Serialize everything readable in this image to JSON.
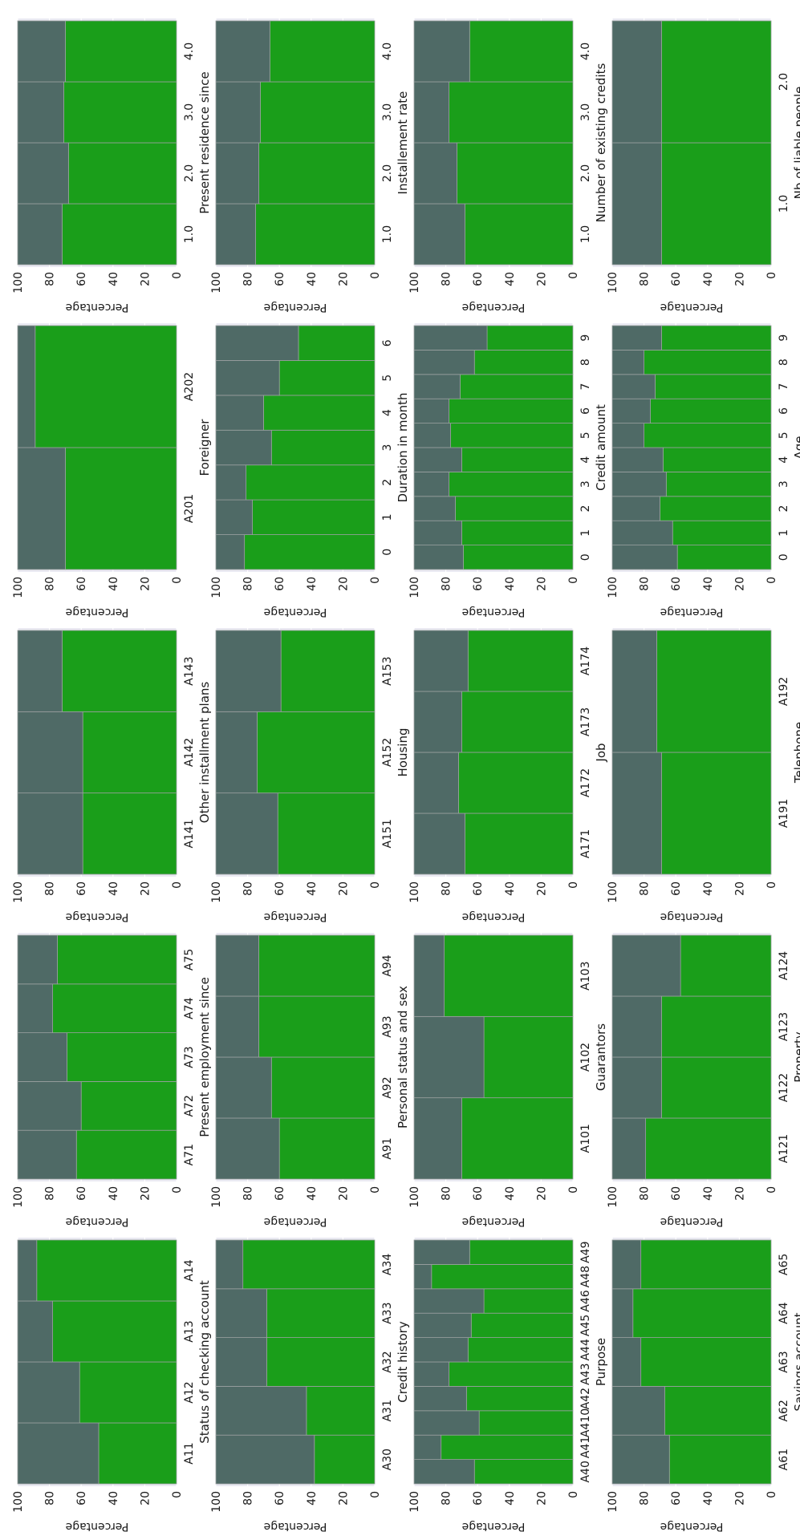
{
  "chart_data": [
    {
      "type": "bar",
      "xlabel": "Status of checking account",
      "ylabel": "Percentage",
      "ylim": [
        0,
        100
      ],
      "categories": [
        "A11",
        "A12",
        "A13",
        "A14"
      ],
      "values": [
        49,
        61,
        78,
        88
      ]
    },
    {
      "type": "bar",
      "xlabel": "Credit history",
      "ylabel": "Percentage",
      "ylim": [
        0,
        100
      ],
      "categories": [
        "A30",
        "A31",
        "A32",
        "A33",
        "A34"
      ],
      "values": [
        38,
        43,
        68,
        68,
        83
      ]
    },
    {
      "type": "bar",
      "xlabel": "Purpose",
      "ylabel": "Percentage",
      "ylim": [
        0,
        100
      ],
      "categories": [
        "A40",
        "A41",
        "A410",
        "A42",
        "A43",
        "A44",
        "A45",
        "A46",
        "A48",
        "A49"
      ],
      "values": [
        62,
        83,
        59,
        67,
        78,
        66,
        64,
        56,
        89,
        65
      ]
    },
    {
      "type": "bar",
      "xlabel": "Savings account",
      "ylabel": "Percentage",
      "ylim": [
        0,
        100
      ],
      "categories": [
        "A61",
        "A62",
        "A63",
        "A64",
        "A65"
      ],
      "values": [
        64,
        67,
        82,
        87,
        82
      ]
    },
    {
      "type": "bar",
      "xlabel": "Present employment since",
      "ylabel": "Percentage",
      "ylim": [
        0,
        100
      ],
      "categories": [
        "A71",
        "A72",
        "A73",
        "A74",
        "A75"
      ],
      "values": [
        63,
        60,
        69,
        78,
        75
      ]
    },
    {
      "type": "bar",
      "xlabel": "Personal status and sex",
      "ylabel": "Percentage",
      "ylim": [
        0,
        100
      ],
      "categories": [
        "A91",
        "A92",
        "A93",
        "A94"
      ],
      "values": [
        60,
        65,
        73,
        73
      ]
    },
    {
      "type": "bar",
      "xlabel": "Guarantors",
      "ylabel": "Percentage",
      "ylim": [
        0,
        100
      ],
      "categories": [
        "A101",
        "A102",
        "A103"
      ],
      "values": [
        70,
        56,
        81
      ]
    },
    {
      "type": "bar",
      "xlabel": "Property",
      "ylabel": "Percentage",
      "ylim": [
        0,
        100
      ],
      "categories": [
        "A121",
        "A122",
        "A123",
        "A124"
      ],
      "values": [
        79,
        69,
        69,
        57
      ]
    },
    {
      "type": "bar",
      "xlabel": "Other installment plans",
      "ylabel": "Percentage",
      "ylim": [
        0,
        100
      ],
      "categories": [
        "A141",
        "A142",
        "A143"
      ],
      "values": [
        59,
        59,
        72
      ]
    },
    {
      "type": "bar",
      "xlabel": "Housing",
      "ylabel": "Percentage",
      "ylim": [
        0,
        100
      ],
      "categories": [
        "A151",
        "A152",
        "A153"
      ],
      "values": [
        61,
        74,
        59
      ]
    },
    {
      "type": "bar",
      "xlabel": "Job",
      "ylabel": "Percentage",
      "ylim": [
        0,
        100
      ],
      "categories": [
        "A171",
        "A172",
        "A173",
        "A174"
      ],
      "values": [
        68,
        72,
        70,
        66
      ]
    },
    {
      "type": "bar",
      "xlabel": "Telephone",
      "ylabel": "Percentage",
      "ylim": [
        0,
        100
      ],
      "categories": [
        "A191",
        "A192"
      ],
      "values": [
        69,
        72
      ]
    },
    {
      "type": "bar",
      "xlabel": "Foreigner",
      "ylabel": "Percentage",
      "ylim": [
        0,
        100
      ],
      "categories": [
        "A201",
        "A202"
      ],
      "values": [
        70,
        89
      ]
    },
    {
      "type": "bar",
      "xlabel": "Duration in month",
      "ylabel": "Percentage",
      "ylim": [
        0,
        100
      ],
      "categories": [
        "0",
        "1",
        "2",
        "3",
        "4",
        "5",
        "6"
      ],
      "values": [
        82,
        77,
        81,
        65,
        70,
        60,
        48
      ]
    },
    {
      "type": "bar",
      "xlabel": "Credit amount",
      "ylabel": "Percentage",
      "ylim": [
        0,
        100
      ],
      "categories": [
        "0",
        "1",
        "2",
        "3",
        "4",
        "5",
        "6",
        "7",
        "8",
        "9"
      ],
      "values": [
        69,
        70,
        74,
        78,
        70,
        77,
        78,
        71,
        62,
        54
      ]
    },
    {
      "type": "bar",
      "xlabel": "Age",
      "ylabel": "Percentage",
      "ylim": [
        0,
        100
      ],
      "categories": [
        "0",
        "1",
        "2",
        "3",
        "4",
        "5",
        "6",
        "7",
        "8",
        "9"
      ],
      "values": [
        59,
        62,
        70,
        66,
        68,
        80,
        76,
        73,
        80,
        69
      ]
    },
    {
      "type": "bar",
      "xlabel": "Present residence since",
      "ylabel": "Percentage",
      "ylim": [
        0,
        100
      ],
      "categories": [
        "1.0",
        "2.0",
        "3.0",
        "4.0"
      ],
      "values": [
        72,
        68,
        71,
        70
      ]
    },
    {
      "type": "bar",
      "xlabel": "Installement rate",
      "ylabel": "Percentage",
      "ylim": [
        0,
        100
      ],
      "categories": [
        "1.0",
        "2.0",
        "3.0",
        "4.0"
      ],
      "values": [
        75,
        73,
        72,
        66
      ]
    },
    {
      "type": "bar",
      "xlabel": "Number of existing credits",
      "ylabel": "Percentage",
      "ylim": [
        0,
        100
      ],
      "categories": [
        "1.0",
        "2.0",
        "3.0",
        "4.0"
      ],
      "values": [
        68,
        73,
        78,
        65
      ]
    },
    {
      "type": "bar",
      "xlabel": "Nb of liable people",
      "ylabel": "Percentage",
      "ylim": [
        0,
        100
      ],
      "categories": [
        "1.0",
        "2.0"
      ],
      "values": [
        69,
        69
      ]
    }
  ],
  "colors": {
    "good": "#1a9e1a",
    "bad": "#4f6a66",
    "panel": "#eaeaf2",
    "grid": "#ffffff"
  },
  "y_ticks": [
    "0",
    "20",
    "40",
    "60",
    "80",
    "100"
  ]
}
